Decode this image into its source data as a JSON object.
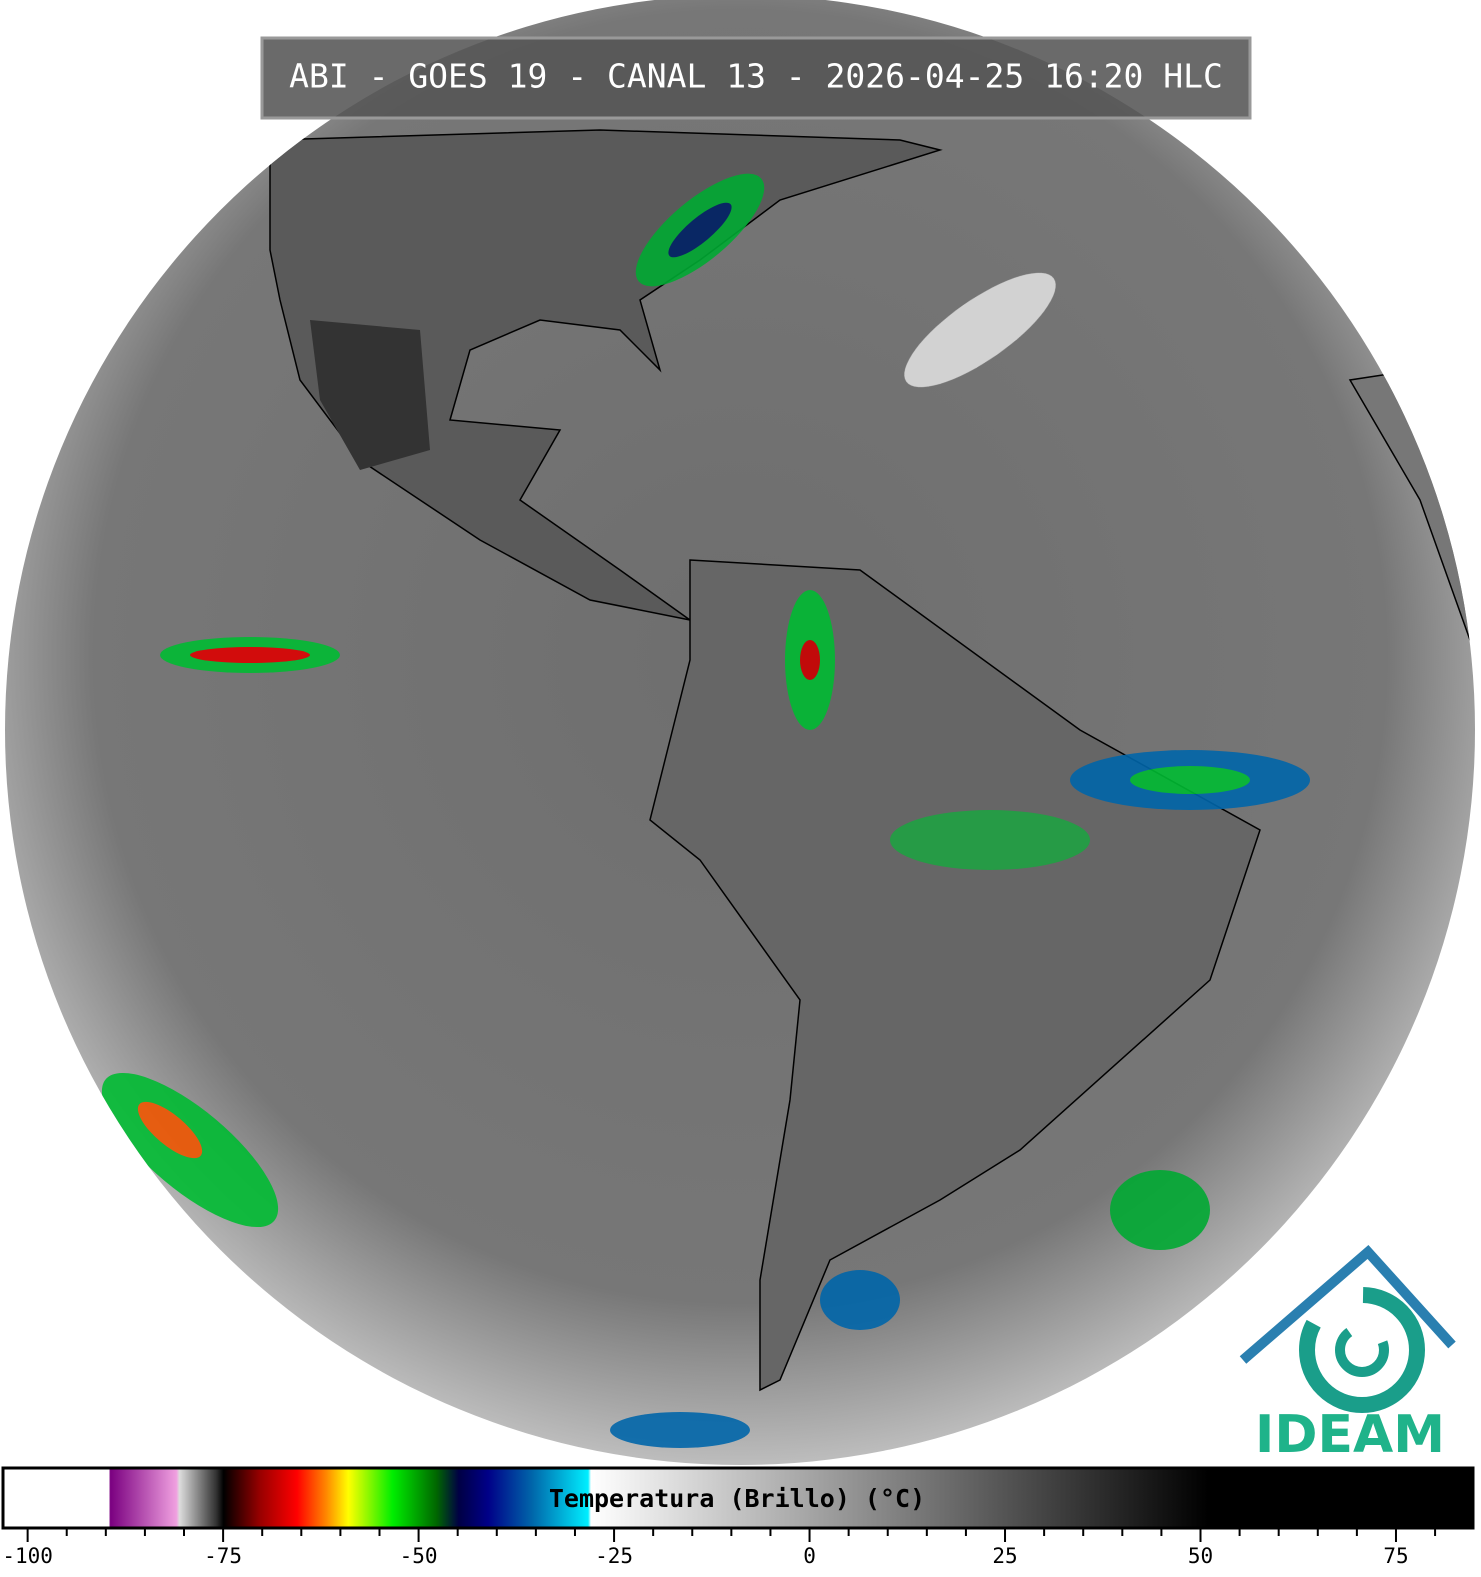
{
  "header": {
    "title": "ABI - GOES 19 - CANAL 13 - 2026-04-25 16:20 HLC"
  },
  "colorbar": {
    "label": "Temperatura (Brillo) (°C)",
    "xlim": [
      -103.15,
      84.85
    ],
    "ticks": [
      -100,
      -75,
      -50,
      -25,
      0,
      25,
      50,
      75
    ],
    "minor_ticks": [
      -95,
      -90,
      -85,
      -80,
      -70,
      -65,
      -60,
      -55,
      -45,
      -40,
      -35,
      -30,
      -20,
      -15,
      -10,
      -5,
      5,
      10,
      15,
      20,
      30,
      35,
      40,
      45,
      55,
      60,
      65,
      70,
      80
    ]
  },
  "logo": {
    "text": "IDEAM"
  }
}
